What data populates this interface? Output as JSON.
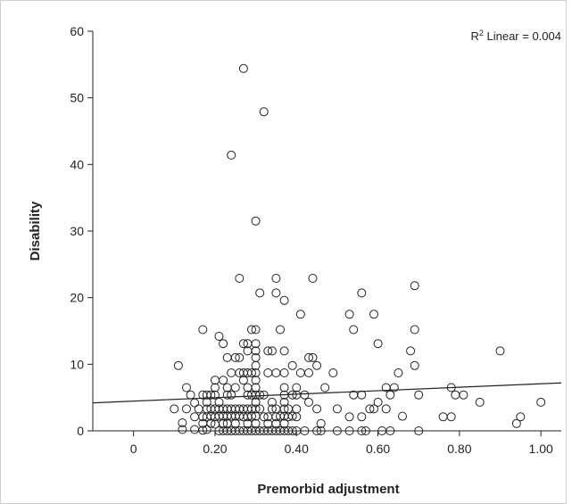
{
  "chart_data": {
    "type": "scatter",
    "xlabel": "Premorbid adjustment",
    "ylabel": "Disability",
    "xlim": [
      -0.1,
      1.05
    ],
    "ylim": [
      0,
      60
    ],
    "x_ticks": [
      0,
      0.2,
      0.4,
      0.6,
      0.8,
      1.0
    ],
    "x_tick_labels": [
      "0",
      "0.20",
      "0.40",
      "0.60",
      "0.80",
      "1.00"
    ],
    "y_ticks": [
      0,
      10,
      20,
      30,
      40,
      50,
      60
    ],
    "y_tick_labels": [
      "0",
      "10",
      "20",
      "30",
      "40",
      "50",
      "60"
    ],
    "grid": false,
    "annotation": {
      "prefix": "R",
      "superscript": "2",
      "suffix": " Linear = 0.004"
    },
    "fit_line": {
      "type": "linear",
      "x": [
        -0.1,
        1.05
      ],
      "y": [
        4.2,
        7.2
      ]
    },
    "points": [
      [
        0.1,
        3.3
      ],
      [
        0.11,
        9.8
      ],
      [
        0.12,
        0.2
      ],
      [
        0.12,
        1.2
      ],
      [
        0.13,
        6.5
      ],
      [
        0.13,
        3.3
      ],
      [
        0.14,
        5.4
      ],
      [
        0.15,
        0.2
      ],
      [
        0.15,
        4.2
      ],
      [
        0.15,
        2.1
      ],
      [
        0.16,
        3.3
      ],
      [
        0.17,
        15.2
      ],
      [
        0.17,
        5.4
      ],
      [
        0.17,
        2.1
      ],
      [
        0.17,
        1.1
      ],
      [
        0.17,
        0.1
      ],
      [
        0.18,
        5.4
      ],
      [
        0.18,
        3.3
      ],
      [
        0.18,
        4.3
      ],
      [
        0.18,
        2.1
      ],
      [
        0.18,
        0.2
      ],
      [
        0.19,
        3.3
      ],
      [
        0.19,
        5.4
      ],
      [
        0.19,
        2.2
      ],
      [
        0.19,
        1.1
      ],
      [
        0.2,
        7.6
      ],
      [
        0.2,
        6.5
      ],
      [
        0.2,
        5.4
      ],
      [
        0.2,
        3.3
      ],
      [
        0.2,
        2.1
      ],
      [
        0.2,
        1.0
      ],
      [
        0.21,
        14.2
      ],
      [
        0.21,
        4.3
      ],
      [
        0.21,
        3.3
      ],
      [
        0.21,
        2.2
      ],
      [
        0.21,
        0.0
      ],
      [
        0.22,
        13.1
      ],
      [
        0.22,
        7.6
      ],
      [
        0.22,
        3.3
      ],
      [
        0.22,
        2.2
      ],
      [
        0.22,
        1.1
      ],
      [
        0.22,
        0.0
      ],
      [
        0.23,
        11.0
      ],
      [
        0.23,
        6.5
      ],
      [
        0.23,
        5.4
      ],
      [
        0.23,
        3.3
      ],
      [
        0.23,
        2.2
      ],
      [
        0.23,
        1.1
      ],
      [
        0.23,
        0.0
      ],
      [
        0.24,
        41.4
      ],
      [
        0.24,
        8.7
      ],
      [
        0.24,
        5.4
      ],
      [
        0.24,
        3.3
      ],
      [
        0.24,
        2.2
      ],
      [
        0.24,
        0.0
      ],
      [
        0.25,
        11.0
      ],
      [
        0.25,
        6.5
      ],
      [
        0.25,
        3.3
      ],
      [
        0.25,
        2.2
      ],
      [
        0.25,
        1.1
      ],
      [
        0.25,
        0.0
      ],
      [
        0.26,
        22.9
      ],
      [
        0.26,
        11.0
      ],
      [
        0.26,
        8.7
      ],
      [
        0.26,
        3.3
      ],
      [
        0.26,
        2.2
      ],
      [
        0.26,
        0.0
      ],
      [
        0.27,
        54.4
      ],
      [
        0.27,
        13.1
      ],
      [
        0.27,
        8.7
      ],
      [
        0.27,
        7.6
      ],
      [
        0.27,
        3.3
      ],
      [
        0.27,
        2.1
      ],
      [
        0.27,
        0.0
      ],
      [
        0.28,
        13.1
      ],
      [
        0.28,
        12.0
      ],
      [
        0.28,
        8.7
      ],
      [
        0.28,
        6.5
      ],
      [
        0.28,
        5.4
      ],
      [
        0.28,
        3.3
      ],
      [
        0.28,
        2.1
      ],
      [
        0.28,
        1.1
      ],
      [
        0.28,
        0.0
      ],
      [
        0.29,
        15.2
      ],
      [
        0.29,
        8.7
      ],
      [
        0.29,
        5.4
      ],
      [
        0.29,
        3.3
      ],
      [
        0.29,
        2.2
      ],
      [
        0.29,
        0.0
      ],
      [
        0.3,
        31.5
      ],
      [
        0.3,
        15.2
      ],
      [
        0.3,
        13.1
      ],
      [
        0.3,
        12.0
      ],
      [
        0.3,
        11.0
      ],
      [
        0.3,
        9.8
      ],
      [
        0.3,
        8.7
      ],
      [
        0.3,
        7.6
      ],
      [
        0.3,
        6.5
      ],
      [
        0.3,
        5.4
      ],
      [
        0.3,
        4.3
      ],
      [
        0.3,
        3.3
      ],
      [
        0.3,
        2.2
      ],
      [
        0.3,
        1.1
      ],
      [
        0.3,
        0.0
      ],
      [
        0.31,
        20.7
      ],
      [
        0.31,
        5.4
      ],
      [
        0.31,
        3.3
      ],
      [
        0.31,
        0.0
      ],
      [
        0.32,
        47.9
      ],
      [
        0.32,
        5.4
      ],
      [
        0.32,
        2.1
      ],
      [
        0.32,
        0.0
      ],
      [
        0.33,
        12.0
      ],
      [
        0.33,
        8.7
      ],
      [
        0.33,
        2.1
      ],
      [
        0.33,
        1.1
      ],
      [
        0.33,
        0.0
      ],
      [
        0.34,
        12.0
      ],
      [
        0.34,
        4.3
      ],
      [
        0.34,
        3.3
      ],
      [
        0.34,
        0.0
      ],
      [
        0.35,
        22.9
      ],
      [
        0.35,
        20.7
      ],
      [
        0.35,
        8.7
      ],
      [
        0.35,
        3.3
      ],
      [
        0.35,
        2.1
      ],
      [
        0.35,
        1.1
      ],
      [
        0.35,
        0.0
      ],
      [
        0.36,
        15.2
      ],
      [
        0.36,
        2.2
      ],
      [
        0.36,
        0.0
      ],
      [
        0.37,
        19.6
      ],
      [
        0.37,
        12.0
      ],
      [
        0.37,
        8.7
      ],
      [
        0.37,
        6.5
      ],
      [
        0.37,
        5.4
      ],
      [
        0.37,
        4.3
      ],
      [
        0.37,
        3.3
      ],
      [
        0.37,
        2.2
      ],
      [
        0.37,
        1.1
      ],
      [
        0.37,
        0.0
      ],
      [
        0.38,
        3.3
      ],
      [
        0.38,
        2.1
      ],
      [
        0.38,
        0.0
      ],
      [
        0.39,
        9.8
      ],
      [
        0.39,
        5.4
      ],
      [
        0.39,
        2.2
      ],
      [
        0.39,
        0.0
      ],
      [
        0.4,
        6.5
      ],
      [
        0.4,
        5.4
      ],
      [
        0.4,
        3.3
      ],
      [
        0.4,
        2.1
      ],
      [
        0.4,
        0.0
      ],
      [
        0.41,
        17.5
      ],
      [
        0.41,
        8.7
      ],
      [
        0.42,
        5.4
      ],
      [
        0.42,
        0.0
      ],
      [
        0.43,
        11.0
      ],
      [
        0.43,
        8.7
      ],
      [
        0.43,
        4.3
      ],
      [
        0.44,
        22.9
      ],
      [
        0.44,
        11.0
      ],
      [
        0.45,
        9.8
      ],
      [
        0.45,
        3.3
      ],
      [
        0.45,
        0.0
      ],
      [
        0.46,
        1.1
      ],
      [
        0.46,
        0.0
      ],
      [
        0.47,
        6.5
      ],
      [
        0.49,
        8.7
      ],
      [
        0.5,
        3.3
      ],
      [
        0.5,
        0.0
      ],
      [
        0.53,
        17.5
      ],
      [
        0.53,
        2.1
      ],
      [
        0.53,
        0.0
      ],
      [
        0.54,
        15.2
      ],
      [
        0.54,
        5.4
      ],
      [
        0.56,
        20.7
      ],
      [
        0.56,
        5.4
      ],
      [
        0.56,
        2.1
      ],
      [
        0.56,
        0.0
      ],
      [
        0.57,
        0.0
      ],
      [
        0.58,
        3.3
      ],
      [
        0.59,
        17.5
      ],
      [
        0.59,
        3.3
      ],
      [
        0.6,
        13.1
      ],
      [
        0.6,
        4.3
      ],
      [
        0.61,
        0.0
      ],
      [
        0.62,
        6.5
      ],
      [
        0.62,
        3.3
      ],
      [
        0.63,
        5.4
      ],
      [
        0.63,
        0.0
      ],
      [
        0.64,
        6.5
      ],
      [
        0.65,
        8.7
      ],
      [
        0.66,
        2.2
      ],
      [
        0.68,
        12.0
      ],
      [
        0.69,
        21.8
      ],
      [
        0.69,
        15.2
      ],
      [
        0.69,
        9.8
      ],
      [
        0.7,
        5.4
      ],
      [
        0.7,
        0.0
      ],
      [
        0.76,
        2.1
      ],
      [
        0.78,
        6.5
      ],
      [
        0.78,
        2.1
      ],
      [
        0.79,
        5.4
      ],
      [
        0.81,
        5.4
      ],
      [
        0.85,
        4.3
      ],
      [
        0.9,
        12.0
      ],
      [
        0.94,
        1.1
      ],
      [
        0.95,
        2.1
      ],
      [
        1.0,
        4.3
      ]
    ]
  }
}
